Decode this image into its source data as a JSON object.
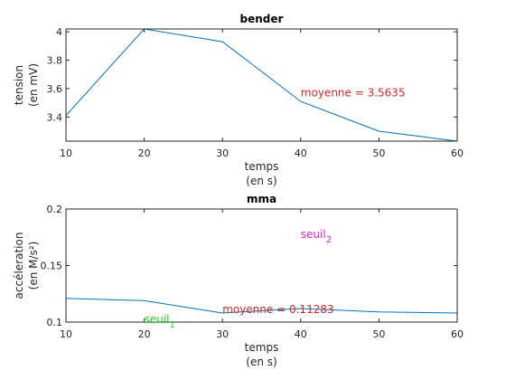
{
  "chart_data": [
    {
      "type": "line",
      "title": "bender",
      "xlabel": [
        "temps",
        "(en s)"
      ],
      "ylabel": [
        "tension",
        "(en mV)"
      ],
      "xlim": [
        10,
        60
      ],
      "ylim": [
        3.23,
        4.02
      ],
      "xticks": [
        "10",
        "20",
        "30",
        "40",
        "50",
        "60"
      ],
      "yticks": [
        "3.4",
        "3.6",
        "3.8",
        "4"
      ],
      "grid": false,
      "series": [
        {
          "x": [
            10,
            20,
            30,
            40,
            50,
            60
          ],
          "y": [
            3.41,
            4.02,
            3.93,
            3.51,
            3.3,
            3.23
          ],
          "color": "#0072bd"
        }
      ],
      "annotations": [
        {
          "text": "moyenne =  3.5635",
          "x": 40,
          "y": 3.57,
          "color": "#d62728"
        }
      ]
    },
    {
      "type": "line",
      "title": "mma",
      "xlabel": [
        "temps",
        "(en s)"
      ],
      "ylabel": [
        "accéleration",
        "(en M/s²)"
      ],
      "xlim": [
        10,
        60
      ],
      "ylim": [
        0.1,
        0.2
      ],
      "xticks": [
        "10",
        "20",
        "30",
        "40",
        "50",
        "60"
      ],
      "yticks": [
        "0.1",
        "0.15",
        "0.2"
      ],
      "grid": false,
      "series": [
        {
          "x": [
            10,
            20,
            30,
            40,
            50,
            60
          ],
          "y": [
            0.121,
            0.119,
            0.108,
            0.112,
            0.109,
            0.108
          ],
          "color": "#0072bd"
        },
        {
          "x": [
            10,
            60
          ],
          "y": [
            0.2,
            0.2
          ],
          "color": "#e020e0"
        },
        {
          "x": [
            10,
            60
          ],
          "y": [
            0.1,
            0.1
          ],
          "color": "#20d020"
        }
      ],
      "annotations": [
        {
          "text": "moyenne =  0.11283",
          "x": 30,
          "y": 0.1113,
          "color": "#d62728"
        },
        {
          "text": "seuil",
          "sub": "2",
          "x": 40,
          "y": 0.1775,
          "color": "#e020e0"
        },
        {
          "text": "seuil",
          "sub": "1",
          "x": 20,
          "y": 0.1025,
          "color": "#20d020"
        }
      ]
    }
  ]
}
